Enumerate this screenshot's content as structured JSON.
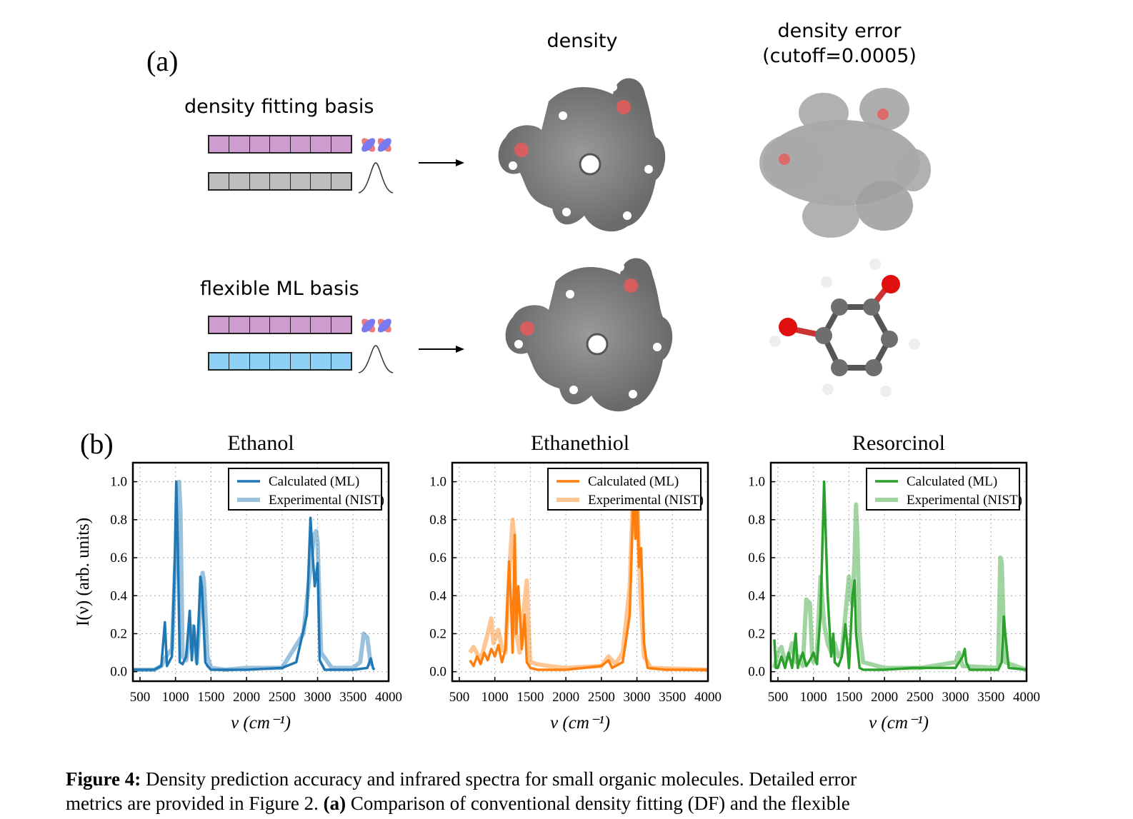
{
  "panel_a": {
    "label": "(a)",
    "col_density": "density",
    "col_error": "density error\n(cutoff=0.0005)",
    "row1_label": "density fitting basis",
    "row2_label": "flexible ML basis",
    "colors": {
      "pink": "#cf9ccf",
      "gray": "#bdbdbd",
      "blue": "#8fd0f7"
    }
  },
  "panel_b": {
    "label": "(b)",
    "ylabel": "I(ν) (arb. units)",
    "xlabel": "ν (cm⁻¹)"
  },
  "chart_data": [
    {
      "type": "line",
      "title": "Ethanol",
      "xlabel": "ν (cm⁻¹)",
      "ylabel": "I(ν) (arb. units)",
      "xlim": [
        400,
        4000
      ],
      "ylim": [
        -0.05,
        1.1
      ],
      "xticks": [
        500,
        1000,
        1500,
        2000,
        2500,
        3000,
        3500,
        4000
      ],
      "yticks": [
        0.0,
        0.2,
        0.4,
        0.6,
        0.8,
        1.0
      ],
      "grid": true,
      "legend_position": "top-right",
      "series": [
        {
          "name": "Calculated (ML)",
          "color": "#1f77b4",
          "opacity": 1.0,
          "x": [
            400,
            700,
            800,
            850,
            880,
            950,
            990,
            1010,
            1030,
            1060,
            1100,
            1150,
            1200,
            1230,
            1260,
            1300,
            1350,
            1370,
            1400,
            1420,
            1450,
            1500,
            1700,
            2000,
            2500,
            2700,
            2850,
            2900,
            2930,
            2960,
            3000,
            3030,
            3100,
            3500,
            3700,
            3750,
            3780,
            3800
          ],
          "y": [
            0.01,
            0.01,
            0.03,
            0.26,
            0.03,
            0.08,
            0.6,
            1.0,
            0.7,
            0.05,
            0.04,
            0.08,
            0.32,
            0.06,
            0.24,
            0.04,
            0.5,
            0.45,
            0.22,
            0.05,
            0.03,
            0.01,
            0.01,
            0.01,
            0.02,
            0.05,
            0.3,
            0.81,
            0.62,
            0.45,
            0.57,
            0.06,
            0.01,
            0.01,
            0.02,
            0.07,
            0.02,
            0.01
          ]
        },
        {
          "name": "Experimental (NIST)",
          "color": "#1f77b4",
          "opacity": 0.45,
          "x": [
            400,
            700,
            800,
            870,
            950,
            1000,
            1050,
            1070,
            1100,
            1150,
            1200,
            1250,
            1300,
            1380,
            1400,
            1450,
            1500,
            1700,
            2000,
            2500,
            2800,
            2900,
            2950,
            2980,
            3000,
            3050,
            3200,
            3500,
            3600,
            3650,
            3700,
            3750
          ],
          "y": [
            0.01,
            0.01,
            0.03,
            0.08,
            0.12,
            0.6,
            1.0,
            0.85,
            0.08,
            0.06,
            0.2,
            0.24,
            0.05,
            0.52,
            0.48,
            0.08,
            0.02,
            0.01,
            0.02,
            0.02,
            0.2,
            0.55,
            0.72,
            0.74,
            0.68,
            0.1,
            0.02,
            0.02,
            0.05,
            0.2,
            0.18,
            0.03
          ]
        }
      ]
    },
    {
      "type": "line",
      "title": "Ethanethiol",
      "xlabel": "ν (cm⁻¹)",
      "ylabel": "",
      "xlim": [
        400,
        4000
      ],
      "ylim": [
        -0.05,
        1.1
      ],
      "xticks": [
        500,
        1000,
        1500,
        2000,
        2500,
        3000,
        3500,
        4000
      ],
      "yticks": [
        0.0,
        0.2,
        0.4,
        0.6,
        0.8,
        1.0
      ],
      "grid": true,
      "legend_position": "top-right",
      "series": [
        {
          "name": "Calculated (ML)",
          "color": "#ff7f0e",
          "opacity": 1.0,
          "x": [
            650,
            700,
            750,
            800,
            850,
            900,
            950,
            1000,
            1050,
            1100,
            1150,
            1200,
            1230,
            1250,
            1280,
            1300,
            1330,
            1380,
            1420,
            1450,
            1500,
            1600,
            2000,
            2500,
            2600,
            2650,
            2800,
            2900,
            2950,
            2980,
            3000,
            3030,
            3060,
            3100,
            3150,
            3400,
            4000
          ],
          "y": [
            0.06,
            0.03,
            0.08,
            0.04,
            0.1,
            0.06,
            0.12,
            0.08,
            0.14,
            0.05,
            0.12,
            0.58,
            0.35,
            0.1,
            0.72,
            0.2,
            0.45,
            0.12,
            0.3,
            0.05,
            0.02,
            0.01,
            0.01,
            0.03,
            0.06,
            0.02,
            0.05,
            0.3,
            0.95,
            0.7,
            0.98,
            0.55,
            0.65,
            0.15,
            0.02,
            0.01,
            0.01
          ]
        },
        {
          "name": "Experimental (NIST)",
          "color": "#ff7f0e",
          "opacity": 0.45,
          "x": [
            650,
            700,
            800,
            900,
            950,
            980,
            1050,
            1100,
            1150,
            1200,
            1250,
            1270,
            1300,
            1350,
            1400,
            1450,
            1480,
            1500,
            1600,
            1750,
            2000,
            2500,
            2600,
            2700,
            2800,
            2900,
            2950,
            3000,
            3050,
            3100,
            3200,
            4000
          ],
          "y": [
            0.1,
            0.13,
            0.06,
            0.2,
            0.28,
            0.15,
            0.22,
            0.12,
            0.1,
            0.5,
            0.8,
            0.72,
            0.2,
            0.1,
            0.3,
            0.48,
            0.2,
            0.05,
            0.04,
            0.03,
            0.02,
            0.03,
            0.08,
            0.04,
            0.1,
            0.45,
            1.0,
            0.95,
            0.4,
            0.08,
            0.02,
            0.01
          ]
        }
      ]
    },
    {
      "type": "line",
      "title": "Resorcinol",
      "xlabel": "ν (cm⁻¹)",
      "ylabel": "",
      "xlim": [
        400,
        4000
      ],
      "ylim": [
        -0.05,
        1.1
      ],
      "xticks": [
        500,
        1000,
        1500,
        2000,
        2500,
        3000,
        3500,
        4000
      ],
      "yticks": [
        0.0,
        0.2,
        0.4,
        0.6,
        0.8,
        1.0
      ],
      "grid": true,
      "legend_position": "top-right",
      "series": [
        {
          "name": "Calculated (ML)",
          "color": "#2ca02c",
          "opacity": 1.0,
          "x": [
            450,
            470,
            500,
            550,
            600,
            650,
            700,
            750,
            780,
            800,
            850,
            900,
            950,
            1000,
            1050,
            1100,
            1150,
            1200,
            1250,
            1280,
            1300,
            1350,
            1400,
            1450,
            1480,
            1500,
            1550,
            1580,
            1600,
            1650,
            1700,
            2000,
            2400,
            2800,
            3000,
            3100,
            3130,
            3150,
            3200,
            3600,
            3650,
            3680,
            3700,
            3750,
            4000
          ],
          "y": [
            0.17,
            0.02,
            0.02,
            0.08,
            0.02,
            0.1,
            0.02,
            0.2,
            0.02,
            0.05,
            0.1,
            0.03,
            0.06,
            0.1,
            0.04,
            0.3,
            1.0,
            0.4,
            0.08,
            0.2,
            0.05,
            0.03,
            0.08,
            0.25,
            0.12,
            0.02,
            0.4,
            0.48,
            0.2,
            0.02,
            0.01,
            0.01,
            0.02,
            0.02,
            0.02,
            0.08,
            0.12,
            0.05,
            0.01,
            0.01,
            0.05,
            0.29,
            0.2,
            0.02,
            0.01
          ]
        },
        {
          "name": "Experimental (NIST)",
          "color": "#2ca02c",
          "opacity": 0.45,
          "x": [
            450,
            500,
            550,
            600,
            650,
            700,
            750,
            800,
            850,
            900,
            950,
            980,
            1000,
            1050,
            1100,
            1150,
            1200,
            1250,
            1300,
            1350,
            1400,
            1450,
            1500,
            1520,
            1550,
            1580,
            1600,
            1620,
            1650,
            1700,
            2000,
            2500,
            3000,
            3050,
            3100,
            3600,
            3630,
            3650,
            3680,
            3700,
            4000
          ],
          "y": [
            0.02,
            0.1,
            0.13,
            0.05,
            0.08,
            0.15,
            0.05,
            0.08,
            0.03,
            0.38,
            0.36,
            0.1,
            0.05,
            0.1,
            0.5,
            0.25,
            0.15,
            0.1,
            0.15,
            0.08,
            0.1,
            0.3,
            0.5,
            0.4,
            0.35,
            0.6,
            0.88,
            0.7,
            0.2,
            0.05,
            0.02,
            0.02,
            0.05,
            0.1,
            0.03,
            0.02,
            0.6,
            0.58,
            0.2,
            0.05,
            0.01
          ]
        }
      ]
    }
  ],
  "caption": {
    "fig_label": "Figure 4:",
    "line1": " Density prediction accuracy and infrared spectra for small organic molecules. Detailed error",
    "line2_pre": "metrics are provided in Figure 2. ",
    "line2_bold": "(a)",
    "line2_post": " Comparison of conventional density fitting (DF) and the flexible"
  }
}
